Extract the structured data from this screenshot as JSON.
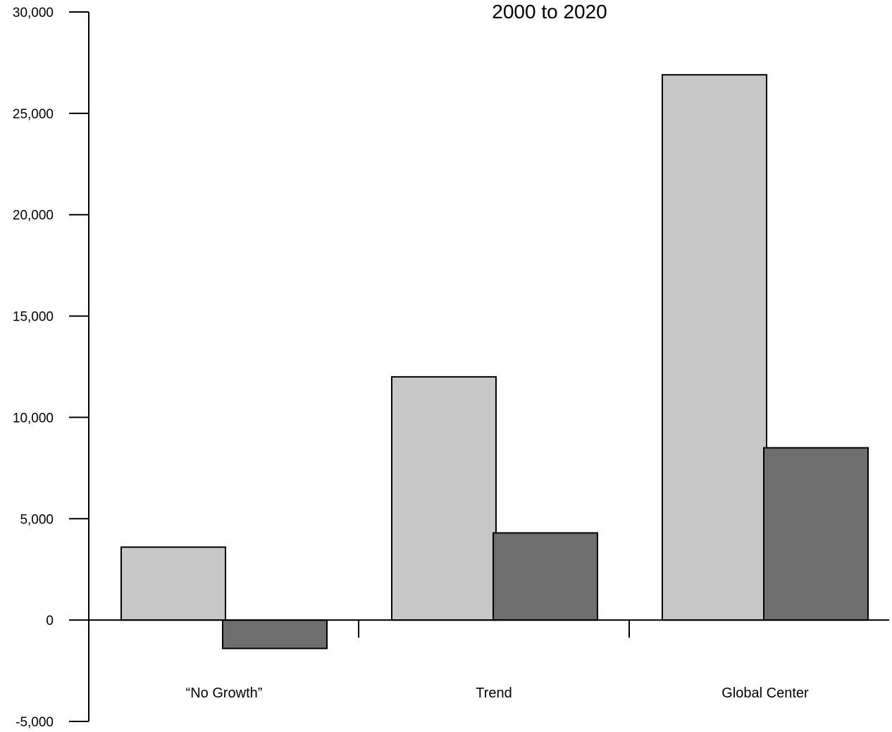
{
  "chart_data": {
    "type": "bar",
    "subtitle": "2000 to 2020",
    "categories": [
      "“No Growth”",
      "Trend",
      "Global Center"
    ],
    "series": [
      {
        "color": "#c7c7c7",
        "values": [
          3600,
          12000,
          26900
        ]
      },
      {
        "color": "#6e6e6e",
        "values": [
          -1400,
          4300,
          8500
        ]
      }
    ],
    "ylim": [
      -5000,
      30000
    ],
    "yticks": [
      30000,
      25000,
      20000,
      15000,
      10000,
      5000,
      0,
      -5000
    ],
    "ytick_labels": [
      "30,000",
      "25,000",
      "20,000",
      "15,000",
      "10,000",
      "5,000",
      "0",
      "-5,000"
    ],
    "grid": false,
    "legend": false
  }
}
